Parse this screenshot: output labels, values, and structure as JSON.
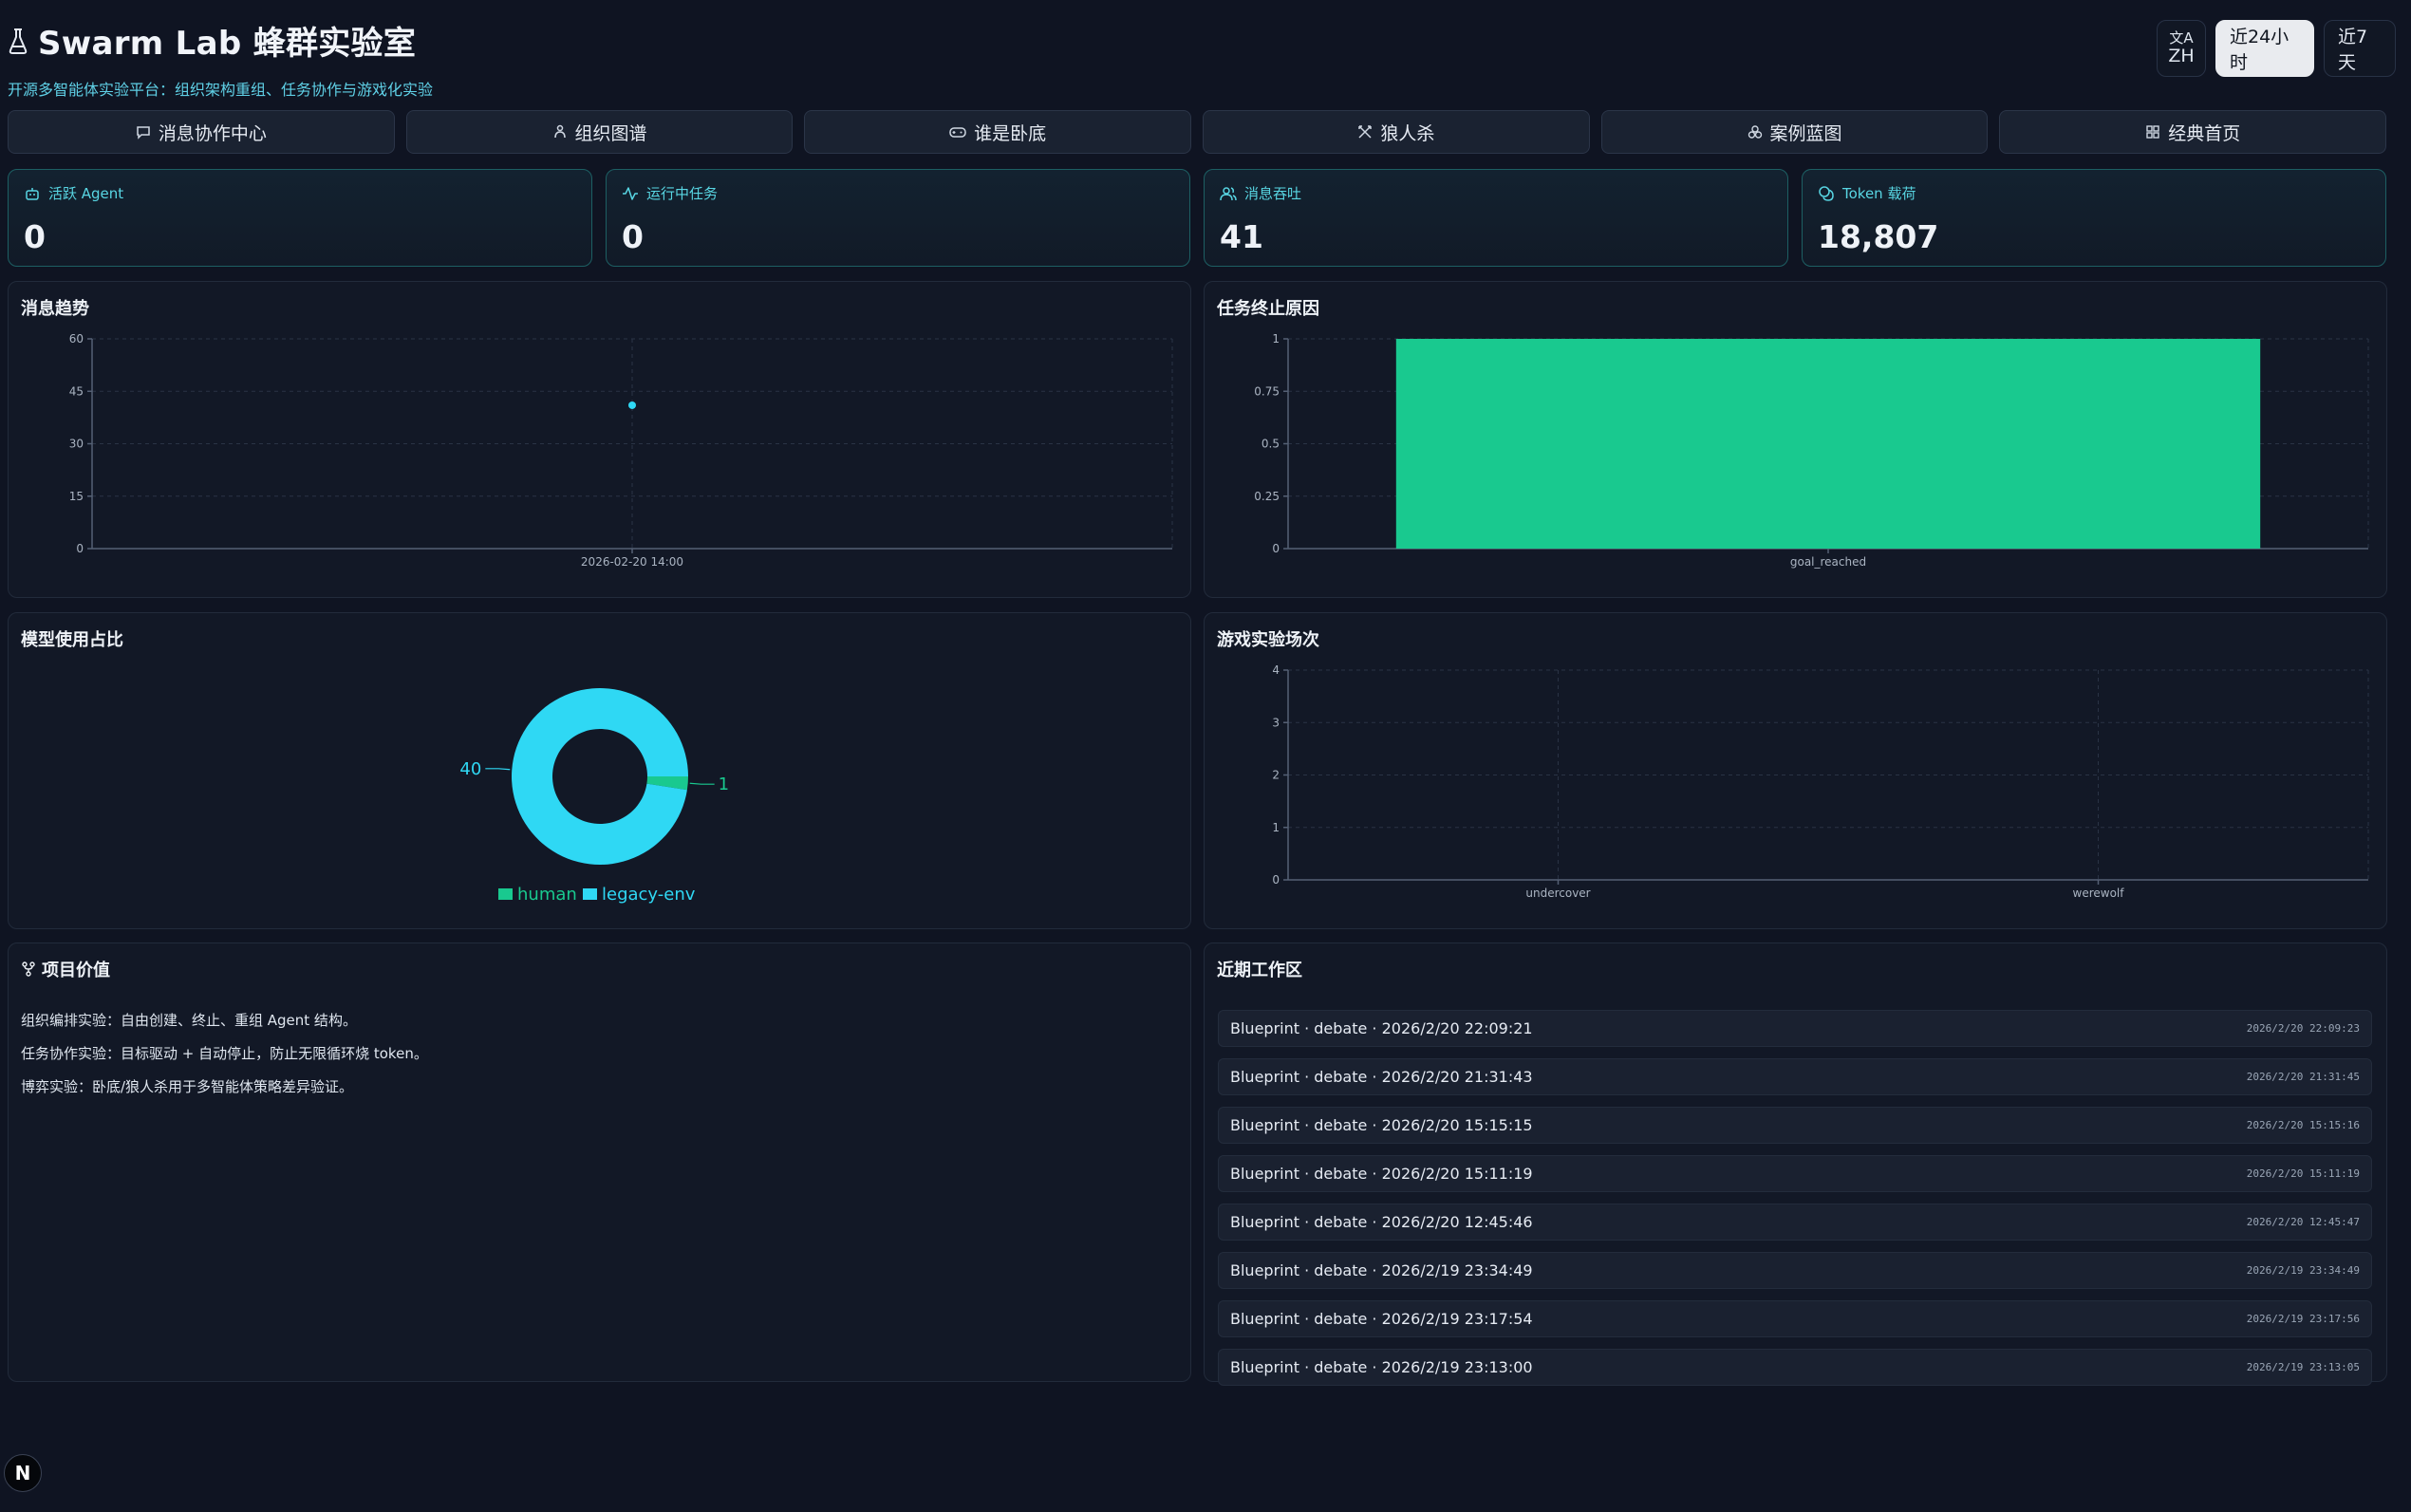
{
  "header": {
    "title": "Swarm Lab 蜂群实验室",
    "subtitle": "开源多智能体实验平台：组织架构重组、任务协作与游戏化实验",
    "lang_label": "ZH",
    "range_24h": "近24小时",
    "range_7d": "近7天"
  },
  "nav": [
    {
      "label": "消息协作中心",
      "icon": "message-icon"
    },
    {
      "label": "组织图谱",
      "icon": "org-icon"
    },
    {
      "label": "谁是卧底",
      "icon": "gamepad-icon"
    },
    {
      "label": "狼人杀",
      "icon": "swords-icon"
    },
    {
      "label": "案例蓝图",
      "icon": "blueprint-icon"
    },
    {
      "label": "经典首页",
      "icon": "grid-icon"
    }
  ],
  "stats": [
    {
      "label": "活跃 Agent",
      "value": "0",
      "icon": "bot-icon"
    },
    {
      "label": "运行中任务",
      "value": "0",
      "icon": "activity-icon"
    },
    {
      "label": "消息吞吐",
      "value": "41",
      "icon": "users-icon"
    },
    {
      "label": "Token 载荷",
      "value": "18,807",
      "icon": "coins-icon"
    }
  ],
  "panels": {
    "message_trend": "消息趋势",
    "stop_reason": "任务终止原因",
    "model_share": "模型使用占比",
    "game_runs": "游戏实验场次",
    "project_value": "项目价值",
    "recent_work": "近期工作区"
  },
  "colors": {
    "cyan": "#2fd8f4",
    "green": "#19c98f",
    "accent_text": "#58d6e3"
  },
  "chart_data": [
    {
      "type": "scatter",
      "title": "消息趋势",
      "x": [
        "2026-02-20 14:00"
      ],
      "y": [
        41
      ],
      "ylim": [
        0,
        60
      ],
      "yticks": [
        0,
        15,
        30,
        45,
        60
      ],
      "grid": true
    },
    {
      "type": "bar",
      "title": "任务终止原因",
      "categories": [
        "goal_reached"
      ],
      "values": [
        1
      ],
      "ylim": [
        0,
        1
      ],
      "yticks": [
        "0",
        "0.25",
        "0.5",
        "0.75",
        "1"
      ],
      "grid": true
    },
    {
      "type": "pie",
      "title": "模型使用占比",
      "labels": [
        "human",
        "legacy-env"
      ],
      "values": [
        1,
        40
      ],
      "legend": "bottom"
    },
    {
      "type": "bar",
      "title": "游戏实验场次",
      "categories": [
        "undercover",
        "werewolf"
      ],
      "values": [
        0,
        0
      ],
      "ylim": [
        0,
        4
      ],
      "yticks": [
        0,
        1,
        2,
        3,
        4
      ],
      "grid": true
    }
  ],
  "project_value": [
    "组织编排实验：自由创建、终止、重组 Agent 结构。",
    "任务协作实验：目标驱动 + 自动停止，防止无限循环烧 token。",
    "博弈实验：卧底/狼人杀用于多智能体策略差异验证。"
  ],
  "recent_work": [
    {
      "name": "Blueprint · debate · 2026/2/20 22:09:21",
      "time": "2026/2/20 22:09:23"
    },
    {
      "name": "Blueprint · debate · 2026/2/20 21:31:43",
      "time": "2026/2/20 21:31:45"
    },
    {
      "name": "Blueprint · debate · 2026/2/20 15:15:15",
      "time": "2026/2/20 15:15:16"
    },
    {
      "name": "Blueprint · debate · 2026/2/20 15:11:19",
      "time": "2026/2/20 15:11:19"
    },
    {
      "name": "Blueprint · debate · 2026/2/20 12:45:46",
      "time": "2026/2/20 12:45:47"
    },
    {
      "name": "Blueprint · debate · 2026/2/19 23:34:49",
      "time": "2026/2/19 23:34:49"
    },
    {
      "name": "Blueprint · debate · 2026/2/19 23:17:54",
      "time": "2026/2/19 23:17:56"
    },
    {
      "name": "Blueprint · debate · 2026/2/19 23:13:00",
      "time": "2026/2/19 23:13:05"
    }
  ],
  "badge": "N"
}
